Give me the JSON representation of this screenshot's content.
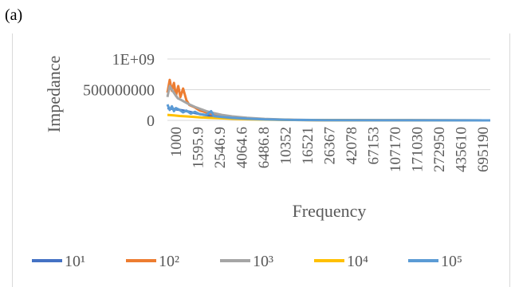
{
  "panel_label": "(a)",
  "chart_data": {
    "type": "line",
    "title": "",
    "xlabel": "Frequency",
    "ylabel": "Impedance",
    "y_ticks": [
      "1E+09",
      "500000000",
      "0"
    ],
    "y_tick_values": [
      1000000000,
      500000000,
      0
    ],
    "ylim": [
      0,
      1000000000
    ],
    "x_tick_labels": [
      "1000",
      "1595.9",
      "2546.9",
      "4064.6",
      "6486.8",
      "10352",
      "16521",
      "26367",
      "42078",
      "67153",
      "107170",
      "171030",
      "272950",
      "435610",
      "695190"
    ],
    "x_log_scale": true,
    "xlim": [
      1000,
      1000000
    ],
    "grid": true,
    "legend_position": "bottom",
    "series": [
      {
        "name": "10¹",
        "color": "#4472c4",
        "x": [
          1000,
          1100,
          1200,
          1300,
          1500,
          1800,
          2200,
          2600,
          3500,
          5000,
          8000,
          15000,
          30000,
          100000,
          1000000
        ],
        "y": [
          200000000,
          190000000,
          180000000,
          170000000,
          150000000,
          120000000,
          90000000,
          70000000,
          45000000,
          28000000,
          15000000,
          7000000,
          3000000,
          1000000,
          200000
        ]
      },
      {
        "name": "10²",
        "color": "#ed7d31",
        "x": [
          1000,
          1050,
          1100,
          1150,
          1200,
          1260,
          1320,
          1400,
          1500,
          1600,
          1800,
          2000,
          2300,
          2600,
          3000,
          3600,
          4500,
          6000,
          9000,
          15000,
          30000,
          100000,
          1000000
        ],
        "y": [
          450000000,
          660000000,
          480000000,
          610000000,
          400000000,
          560000000,
          380000000,
          520000000,
          330000000,
          250000000,
          210000000,
          160000000,
          130000000,
          100000000,
          75000000,
          55000000,
          40000000,
          26000000,
          15000000,
          8000000,
          4000000,
          1200000,
          200000
        ]
      },
      {
        "name": "10³",
        "color": "#a5a5a5",
        "x": [
          1000,
          1050,
          1100,
          1180,
          1250,
          1350,
          1450,
          1600,
          1800,
          2000,
          2300,
          2700,
          3200,
          4000,
          5500,
          8000,
          14000,
          30000,
          100000,
          1000000
        ],
        "y": [
          380000000,
          560000000,
          500000000,
          420000000,
          360000000,
          330000000,
          300000000,
          260000000,
          220000000,
          190000000,
          150000000,
          120000000,
          90000000,
          65000000,
          42000000,
          25000000,
          11000000,
          4000000,
          1200000,
          200000
        ]
      },
      {
        "name": "10⁴",
        "color": "#ffc000",
        "x": [
          1000,
          1150,
          1300,
          1500,
          1700,
          2000,
          2400,
          3000,
          4000,
          6000,
          10000,
          30000,
          100000,
          1000000
        ],
        "y": [
          90000000,
          80000000,
          72000000,
          65000000,
          58000000,
          50000000,
          42000000,
          35000000,
          26000000,
          17000000,
          9000000,
          3000000,
          900000,
          150000
        ]
      },
      {
        "name": "10⁵",
        "color": "#5b9bd5",
        "x": [
          1000,
          1050,
          1100,
          1150,
          1200,
          1300,
          1400,
          1500,
          1650,
          1800,
          2000,
          2300,
          2546.9,
          2700,
          3200,
          4000,
          5500,
          8000,
          14000,
          30000,
          100000,
          1000000
        ],
        "y": [
          260000000,
          170000000,
          230000000,
          150000000,
          200000000,
          170000000,
          130000000,
          160000000,
          110000000,
          140000000,
          100000000,
          90000000,
          150000000,
          70000000,
          55000000,
          40000000,
          27000000,
          16000000,
          8000000,
          3000000,
          900000,
          150000
        ]
      }
    ]
  },
  "colors": {
    "gridline": "#d9d9d9",
    "axis_text": "#595959",
    "frame": "#d9d9d9"
  }
}
